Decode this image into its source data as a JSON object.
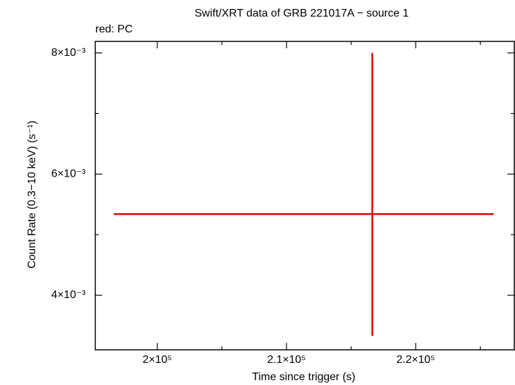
{
  "chart_data": {
    "type": "errorbar",
    "title": "Swift/XRT data of GRB 221017A − source 1",
    "subtitle": "red: PC",
    "x_label": "Time since trigger (s)",
    "y_label": "Count Rate (0.3−10 keV) (s⁻¹)",
    "series": [
      {
        "name": "PC",
        "color": "#e00000",
        "x": [
          216640
        ],
        "xerr_low": [
          20000
        ],
        "xerr_high": [
          9390
        ],
        "values": [
          0.00534
        ],
        "yerr_low": [
          0.00201
        ],
        "yerr_high": [
          0.00266
        ]
      }
    ],
    "xlim": [
      195200,
      227630
    ],
    "ylim": [
      0.0031,
      0.00819
    ],
    "xticks": [
      {
        "value": 200000,
        "label": "2×10⁵"
      },
      {
        "value": 210000,
        "label": "2.1×10⁵"
      },
      {
        "value": 220000,
        "label": "2.2×10⁵"
      }
    ],
    "xminorticks": [
      205000,
      215000,
      225000
    ],
    "yticks": [
      {
        "value": 0.004,
        "label": "4×10⁻³"
      },
      {
        "value": 0.006,
        "label": "6×10⁻³"
      },
      {
        "value": 0.008,
        "label": "8×10⁻³"
      }
    ],
    "yminorticks": [
      0.005,
      0.007
    ]
  }
}
